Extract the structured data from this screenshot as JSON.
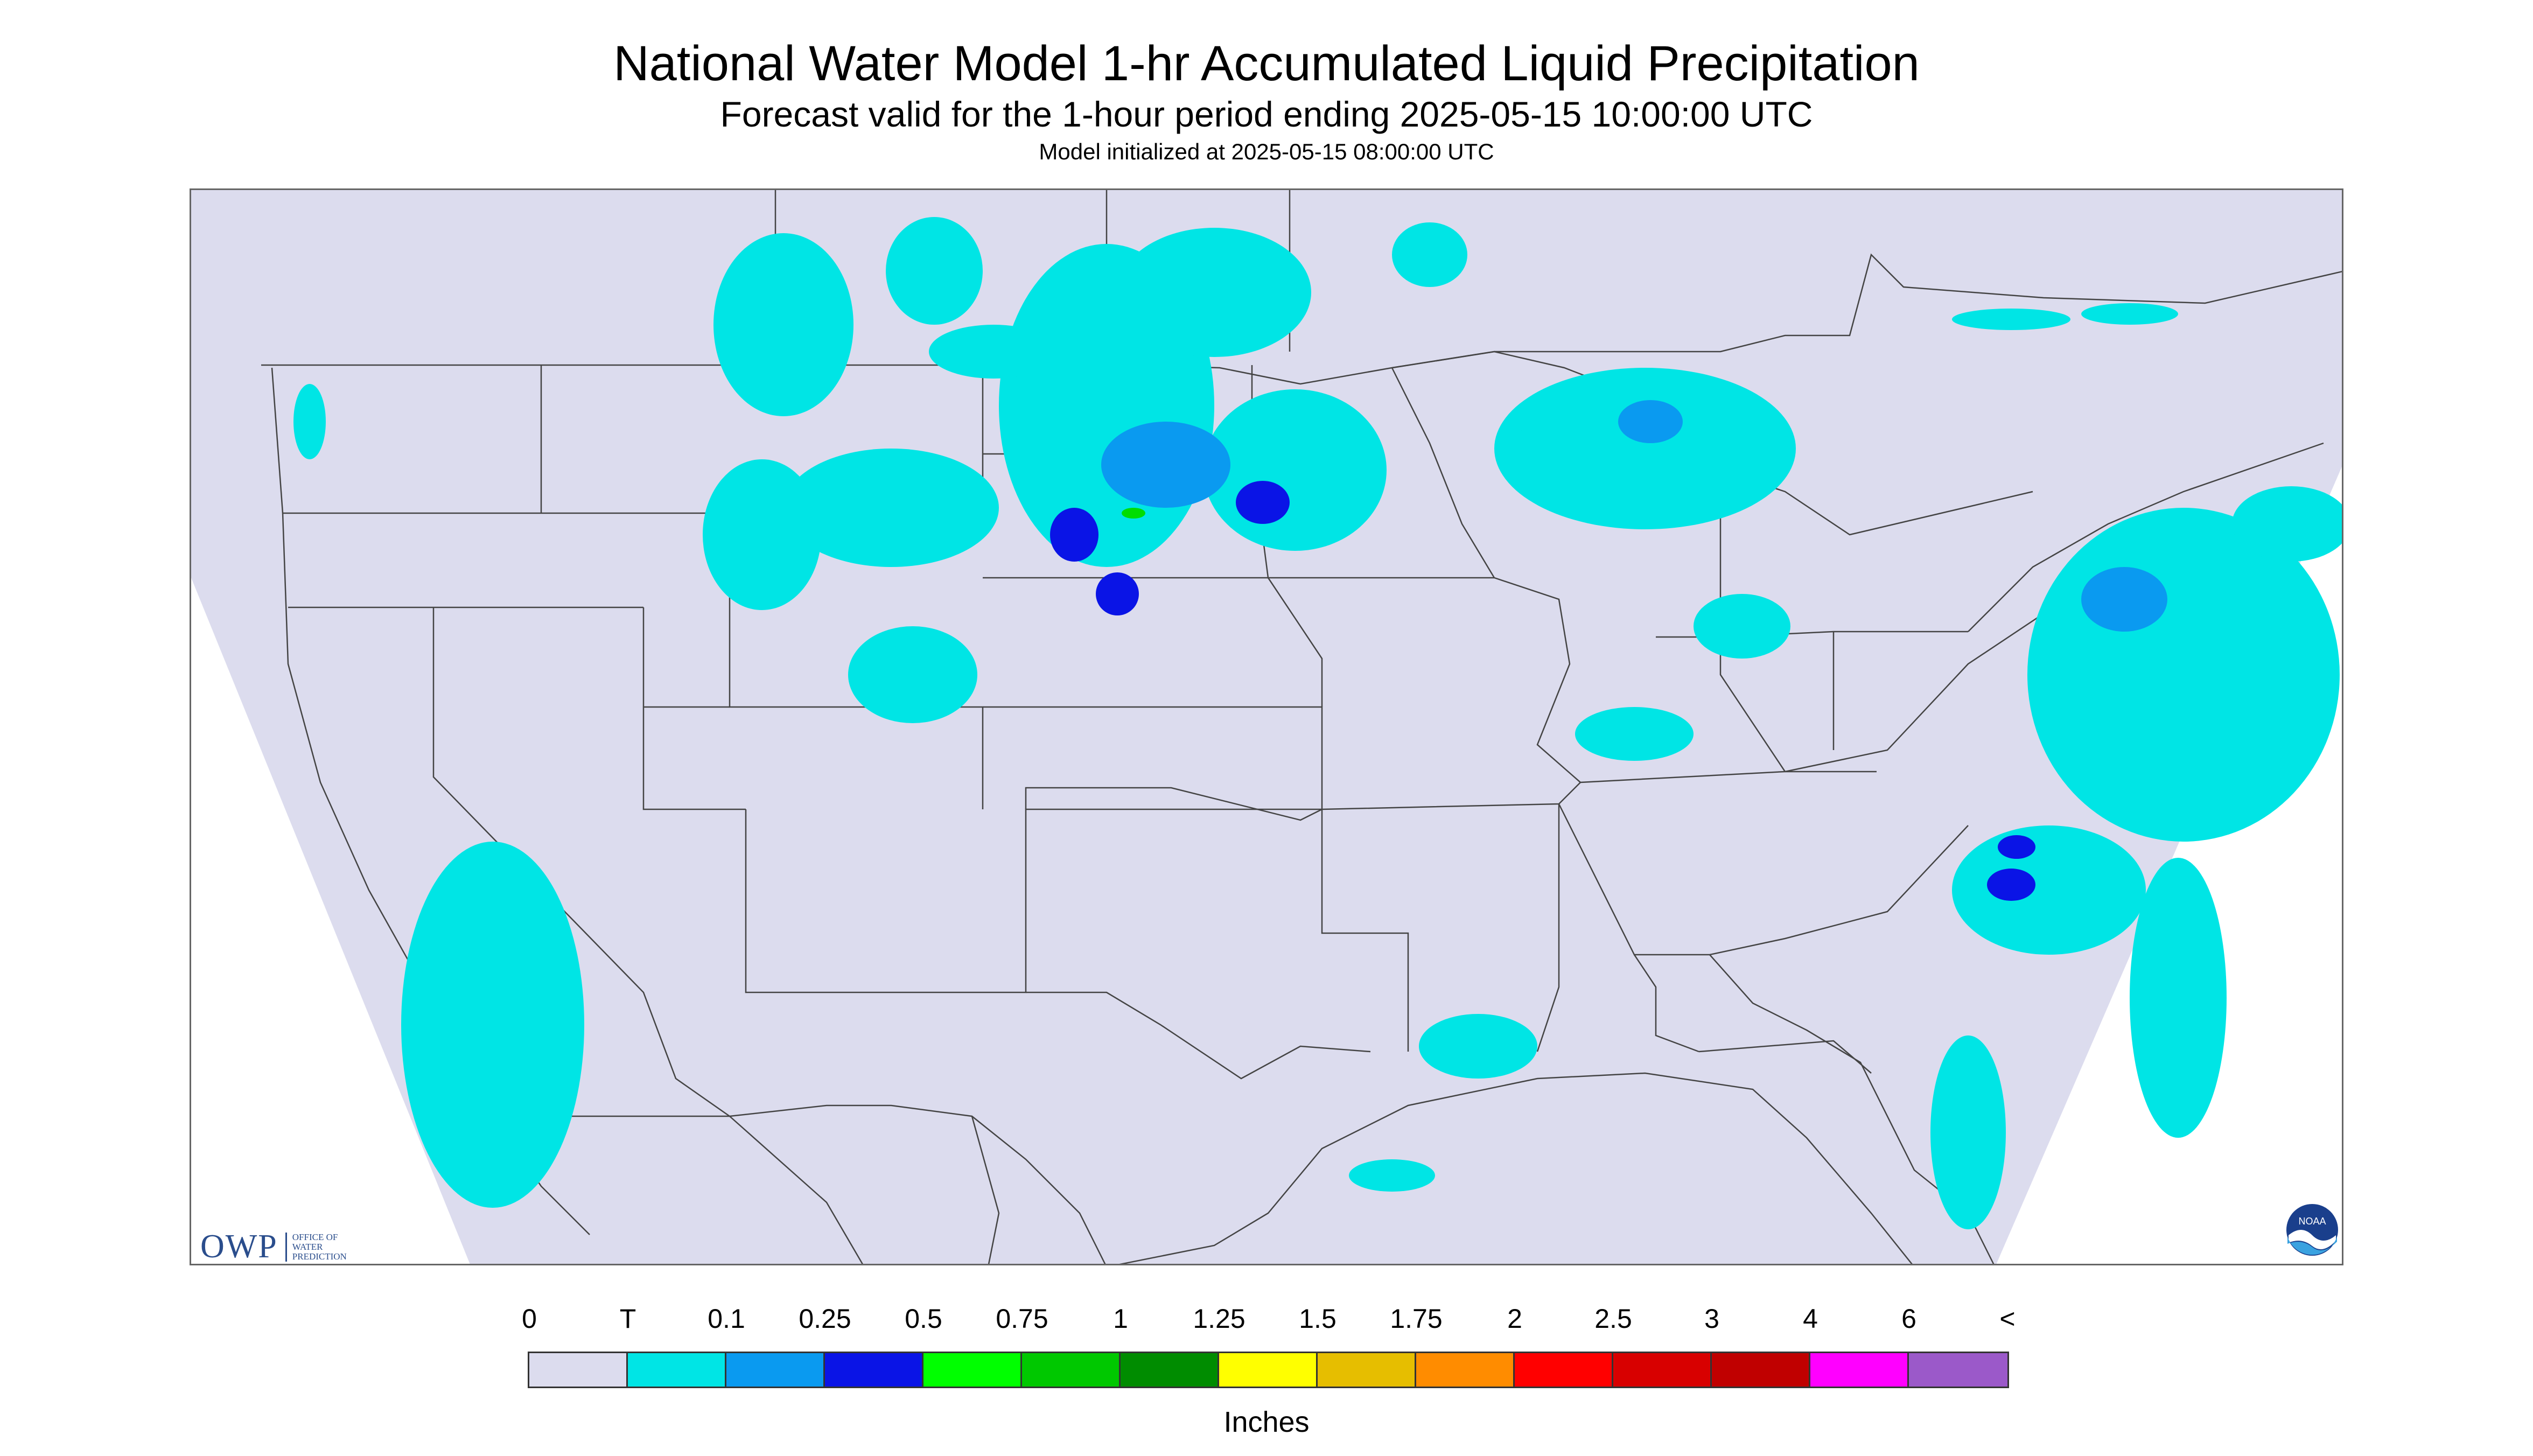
{
  "title": "National Water Model 1-hr Accumulated Liquid Precipitation",
  "subtitle": "Forecast valid for the 1-hour period ending 2025-05-15 10:00:00 UTC",
  "init_line": "Model initialized at 2025-05-15 08:00:00 UTC",
  "colors": {
    "background": "#ffffff",
    "map_fill": "#dcdcee",
    "boundary": "#444444",
    "precip_trace": "#00e5e5",
    "precip_light": "#0a9af0",
    "precip_medium": "#0a14e6",
    "precip_heavy": "#00dd00"
  },
  "legend": {
    "labels": [
      "0",
      "T",
      "0.1",
      "0.25",
      "0.5",
      "0.75",
      "1",
      "1.25",
      "1.5",
      "1.75",
      "2",
      "2.5",
      "3",
      "4",
      "6",
      "<"
    ],
    "colors": [
      "#dcdcee",
      "#00e5e5",
      "#0a9af0",
      "#0a14e6",
      "#00ff00",
      "#00c800",
      "#008c00",
      "#ffff00",
      "#e6be00",
      "#ff8c00",
      "#ff0000",
      "#d80000",
      "#c00000",
      "#ff00ff",
      "#9b59c9"
    ],
    "units": "Inches"
  },
  "logos": {
    "owp": "OWP",
    "owp_sub": "OFFICE OF WATER PREDICTION",
    "noaa": "NOAA"
  }
}
